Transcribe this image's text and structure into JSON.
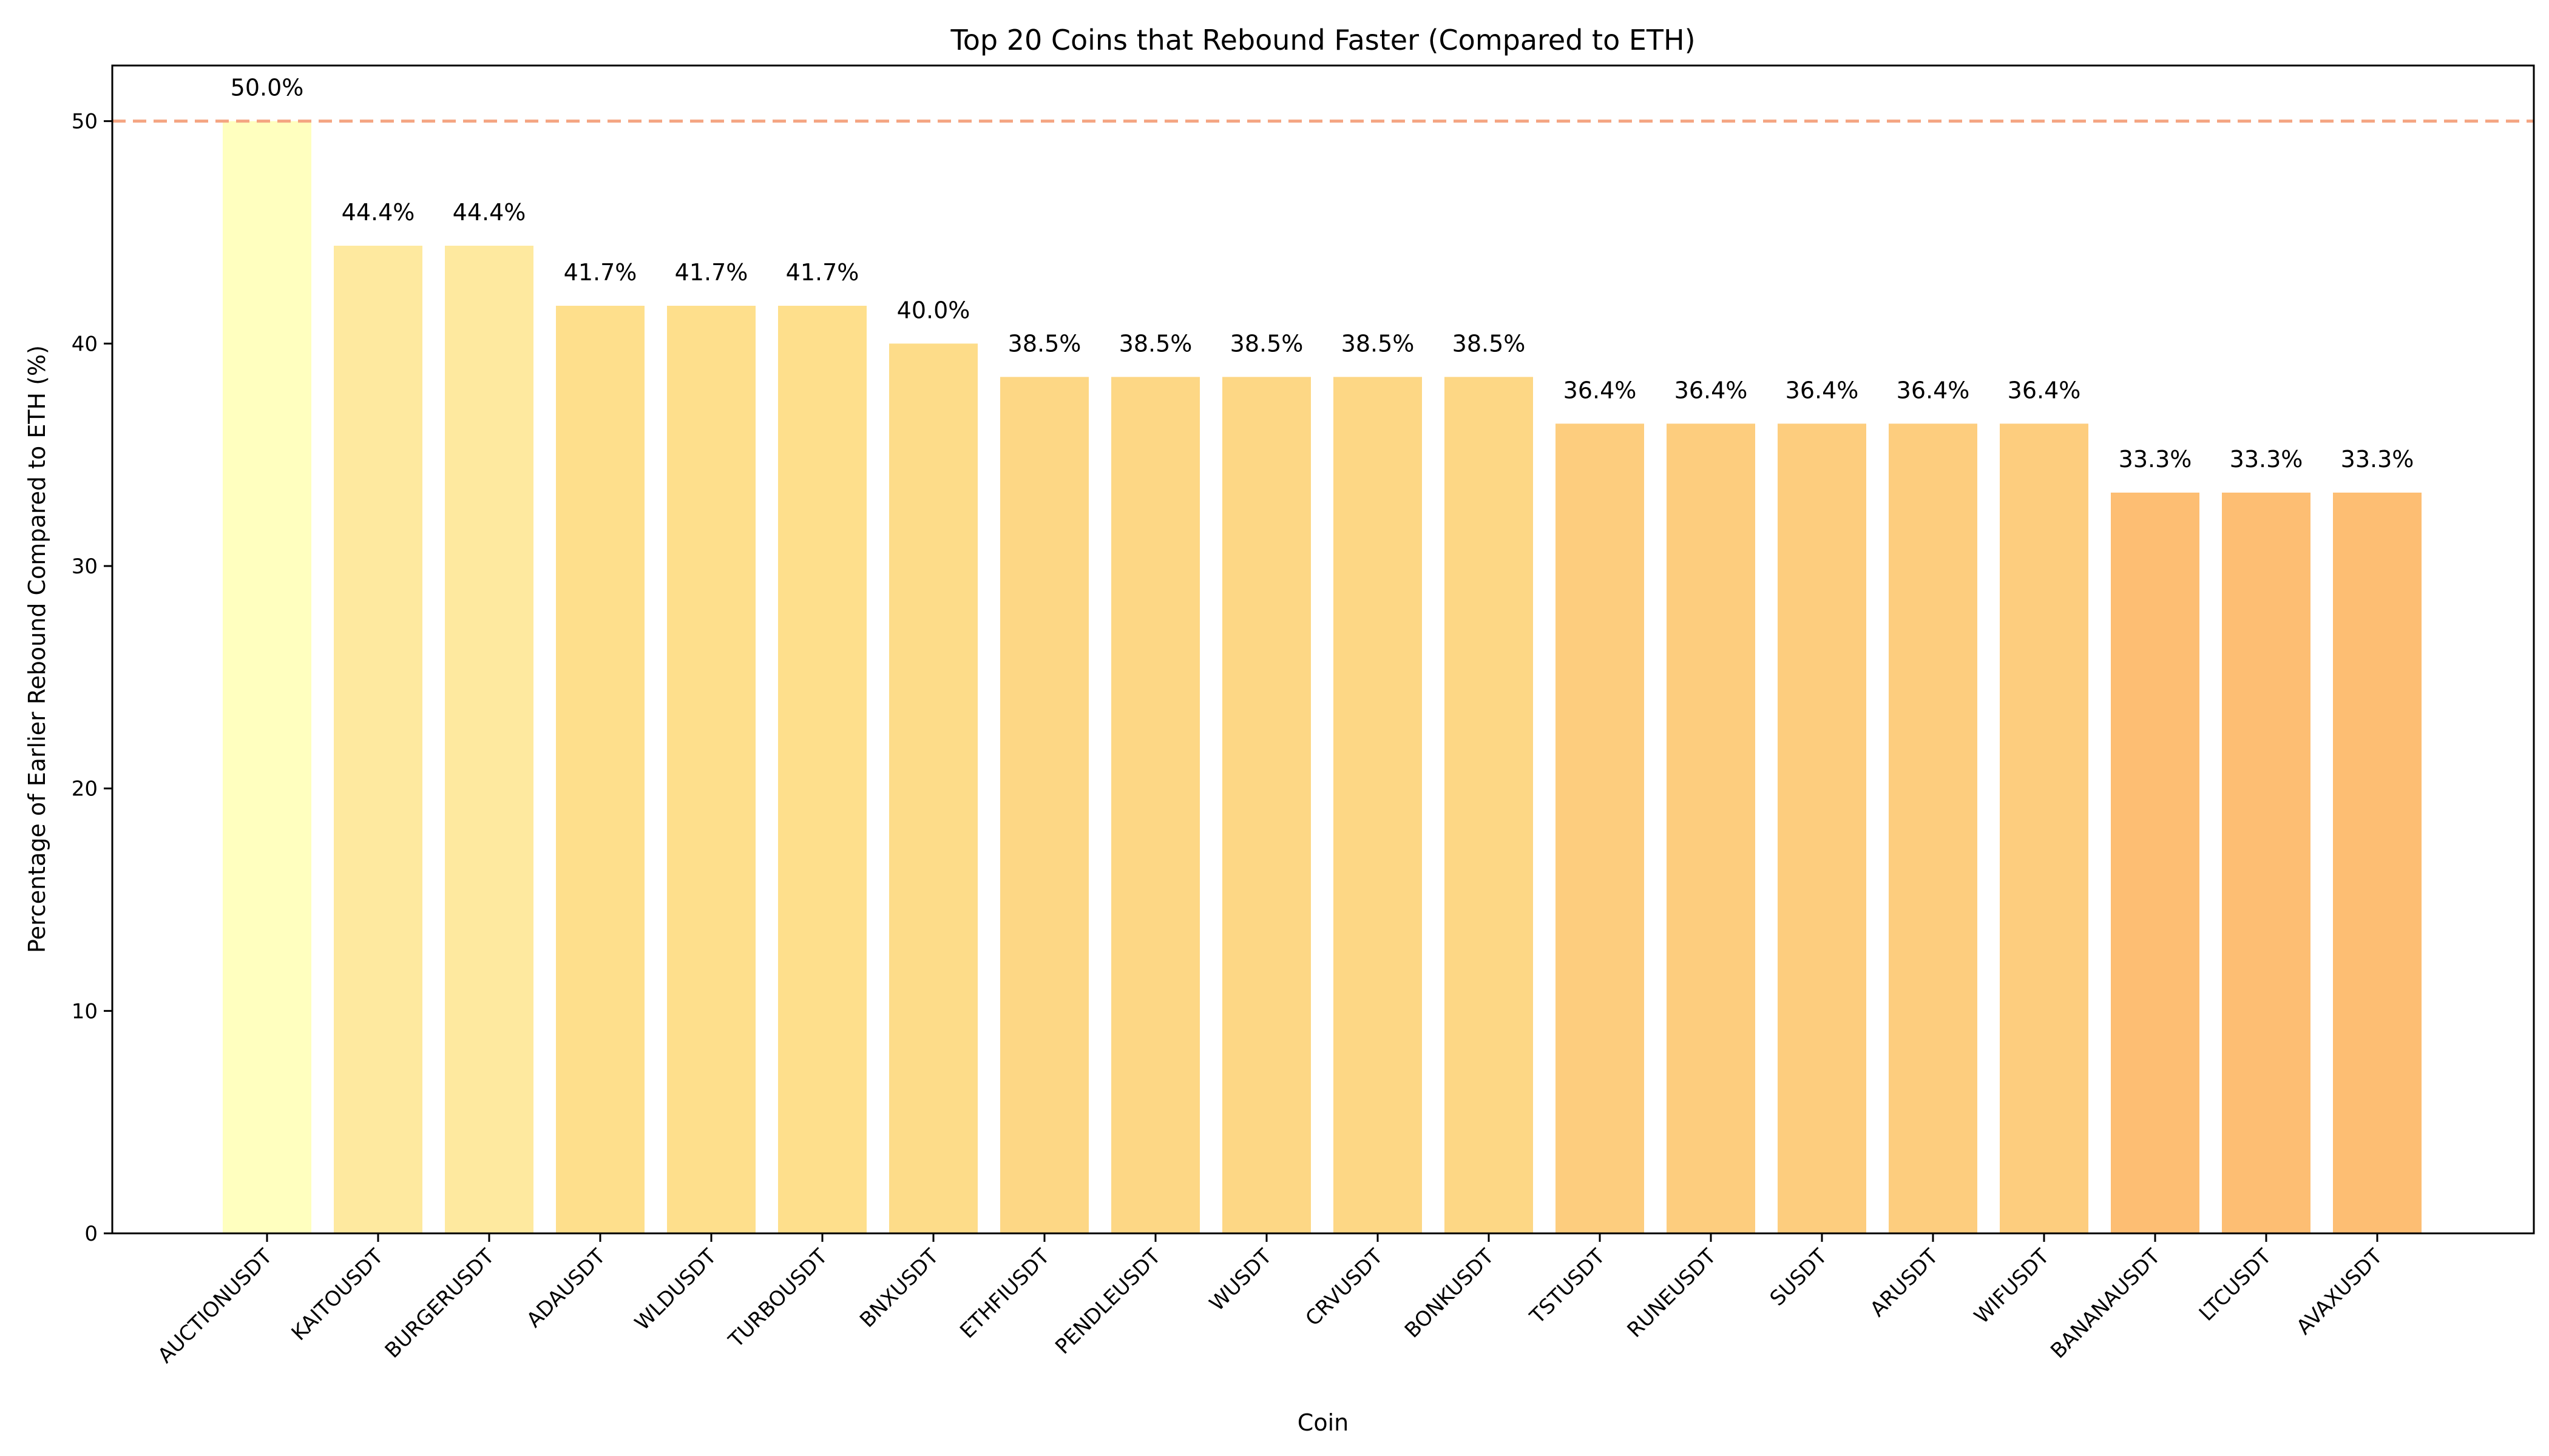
{
  "chart_data": {
    "type": "bar",
    "title": "Top 20 Coins that Rebound Faster (Compared to ETH)",
    "xlabel": "Coin",
    "ylabel": "Percentage of Earlier Rebound Compared to ETH (%)",
    "categories": [
      "AUCTIONUSDT",
      "KAITOUSDT",
      "BURGERUSDT",
      "ADAUSDT",
      "WLDUSDT",
      "TURBOUSDT",
      "BNXUSDT",
      "ETHFIUSDT",
      "PENDLEUSDT",
      "WUSDT",
      "CRVUSDT",
      "BONKUSDT",
      "TSTUSDT",
      "RUNEUSDT",
      "SUSDT",
      "ARUSDT",
      "WIFUSDT",
      "BANANAUSDT",
      "LTCUSDT",
      "AVAXUSDT"
    ],
    "values": [
      50.0,
      44.4,
      44.4,
      41.7,
      41.7,
      41.7,
      40.0,
      38.5,
      38.5,
      38.5,
      38.5,
      38.5,
      36.4,
      36.4,
      36.4,
      36.4,
      36.4,
      33.3,
      33.3,
      33.3
    ],
    "value_labels": [
      "50.0%",
      "44.4%",
      "44.4%",
      "41.7%",
      "41.7%",
      "41.7%",
      "40.0%",
      "38.5%",
      "38.5%",
      "38.5%",
      "38.5%",
      "38.5%",
      "36.4%",
      "36.4%",
      "36.4%",
      "36.4%",
      "36.4%",
      "33.3%",
      "33.3%",
      "33.3%"
    ],
    "bar_colors": [
      "#ffffbf",
      "#fee99f",
      "#fee99f",
      "#fedf8c",
      "#fedf8c",
      "#fedf8c",
      "#fddc89",
      "#fdd785",
      "#fdd785",
      "#fdd785",
      "#fdd785",
      "#fdd785",
      "#fdcd7e",
      "#fdcd7e",
      "#fdcd7e",
      "#fdcd7e",
      "#fdcd7e",
      "#fdbe73",
      "#fdbe73",
      "#fdbe73"
    ],
    "ylim": [
      0,
      52.5
    ],
    "yticks": [
      0,
      10,
      20,
      30,
      40,
      50
    ],
    "reference_line": {
      "y": 50,
      "color": "#f4a582",
      "style": "dashed"
    },
    "grid": false,
    "legend": "none"
  }
}
